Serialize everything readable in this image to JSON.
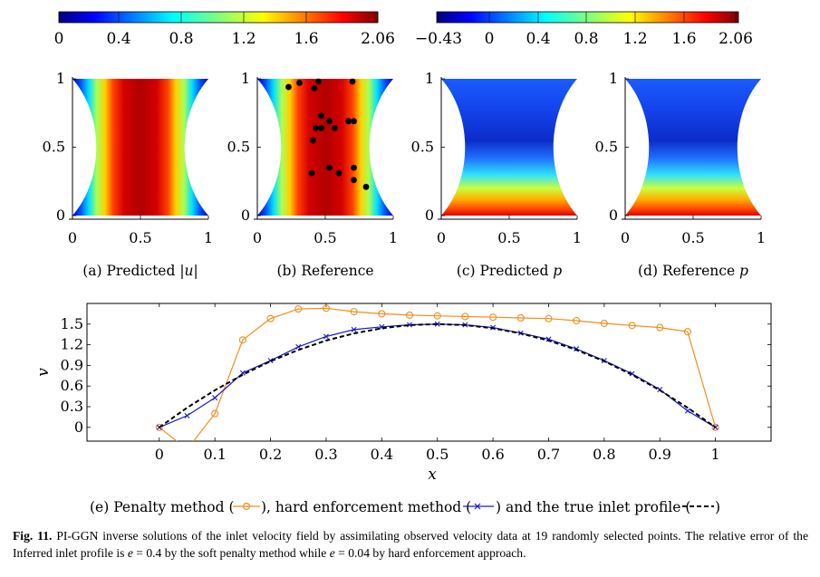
{
  "colorbar_left": {
    "ticks": [
      "0",
      "0.4",
      "0.8",
      "1.2",
      "1.6",
      "2.06"
    ]
  },
  "colorbar_right": {
    "ticks": [
      "−0.43",
      "0",
      "0.4",
      "0.8",
      "1.2",
      "1.6",
      "2.06"
    ]
  },
  "panels": [
    {
      "caption_pre": "(a) Predicted |",
      "caption_var": "u",
      "caption_post": "|",
      "field": "velocity",
      "yticks": [
        "0",
        "0.5",
        "1"
      ],
      "xticks": [
        "0",
        "0.5",
        "1"
      ]
    },
    {
      "caption_pre": "(b) Reference",
      "caption_var": "",
      "caption_post": "",
      "field": "velocity",
      "yticks": [
        "0",
        "0.5",
        "1"
      ],
      "xticks": [
        "0",
        "0.5",
        "1"
      ]
    },
    {
      "caption_pre": "(c) Predicted ",
      "caption_var": "p",
      "caption_post": "",
      "field": "pressure",
      "yticks": [
        "0",
        "0.5",
        "1"
      ],
      "xticks": [
        "0",
        "0.5",
        "1"
      ]
    },
    {
      "caption_pre": "(d) Reference ",
      "caption_var": "p",
      "caption_post": "",
      "field": "pressure",
      "yticks": [
        "0",
        "0.5",
        "1"
      ],
      "xticks": [
        "0",
        "0.5",
        "1"
      ]
    }
  ],
  "observation_points": [
    [
      0.31,
      0.97
    ],
    [
      0.45,
      0.98
    ],
    [
      0.23,
      0.94
    ],
    [
      0.42,
      0.93
    ],
    [
      0.7,
      0.98
    ],
    [
      0.47,
      0.73
    ],
    [
      0.53,
      0.69
    ],
    [
      0.43,
      0.64
    ],
    [
      0.57,
      0.64
    ],
    [
      0.67,
      0.69
    ],
    [
      0.71,
      0.69
    ],
    [
      0.41,
      0.55
    ],
    [
      0.4,
      0.31
    ],
    [
      0.53,
      0.35
    ],
    [
      0.6,
      0.31
    ],
    [
      0.71,
      0.35
    ],
    [
      0.71,
      0.26
    ],
    [
      0.8,
      0.21
    ],
    [
      0.47,
      0.64
    ]
  ],
  "chart_data": {
    "type": "line",
    "xlabel": "x",
    "ylabel": "v",
    "xlim": [
      -0.13,
      1.1
    ],
    "ylim": [
      -0.2,
      1.8
    ],
    "xticks": [
      "0",
      "0.1",
      "0.2",
      "0.3",
      "0.4",
      "0.5",
      "0.6",
      "0.7",
      "0.8",
      "0.9",
      "1"
    ],
    "yticks": [
      "0",
      "0.3",
      "0.6",
      "0.9",
      "1.2",
      "1.5"
    ],
    "x": [
      0,
      0.05,
      0.1,
      0.15,
      0.2,
      0.25,
      0.3,
      0.35,
      0.4,
      0.45,
      0.5,
      0.55,
      0.6,
      0.65,
      0.7,
      0.75,
      0.8,
      0.85,
      0.9,
      0.95,
      1
    ],
    "series": [
      {
        "key": "penalty",
        "color": "#f28e1c",
        "marker": "circle",
        "values": [
          0,
          -0.32,
          0.2,
          1.27,
          1.58,
          1.72,
          1.73,
          1.68,
          1.65,
          1.63,
          1.62,
          1.61,
          1.6,
          1.59,
          1.58,
          1.55,
          1.51,
          1.48,
          1.45,
          1.39,
          0
        ]
      },
      {
        "key": "hard",
        "color": "#1a1acc",
        "marker": "x",
        "values": [
          0,
          0.17,
          0.43,
          0.79,
          0.97,
          1.17,
          1.32,
          1.42,
          1.46,
          1.49,
          1.5,
          1.49,
          1.45,
          1.37,
          1.28,
          1.14,
          0.97,
          0.78,
          0.55,
          0.24,
          0
        ]
      },
      {
        "key": "true",
        "color": "#000000",
        "marker": "none",
        "values": [
          0,
          0.285,
          0.54,
          0.765,
          0.96,
          1.125,
          1.26,
          1.365,
          1.44,
          1.485,
          1.5,
          1.485,
          1.44,
          1.365,
          1.26,
          1.125,
          0.96,
          0.765,
          0.54,
          0.285,
          0
        ]
      }
    ]
  },
  "plot_caption": {
    "p1": "(e) Penalty method (",
    "p2": "), hard enforcement method (",
    "p3": ") and the true inlet profile ("
  },
  "figure_caption": {
    "label": "Fig. 11.",
    "text1": " PI-GGN inverse solutions of the inlet velocity field by assimilating observed velocity data at 19 randomly selected points. The relative error of the Inferred inlet profile is ",
    "e_sym": "e",
    "val1": " = 0.4 by the soft penalty method while ",
    "val2": " = 0.04 by hard enforcement approach."
  }
}
